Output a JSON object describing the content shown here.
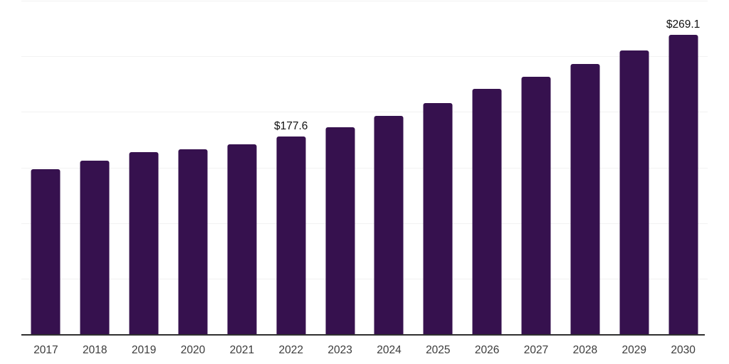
{
  "chart_data": {
    "type": "bar",
    "title": "",
    "xlabel": "",
    "ylabel": "",
    "categories": [
      "2017",
      "2018",
      "2019",
      "2020",
      "2021",
      "2022",
      "2023",
      "2024",
      "2025",
      "2026",
      "2027",
      "2028",
      "2029",
      "2030"
    ],
    "values": [
      148.5,
      156.0,
      164.0,
      166.6,
      170.8,
      177.6,
      186.4,
      196.3,
      208.2,
      220.8,
      231.8,
      243.3,
      255.3,
      269.1
    ],
    "data_labels": [
      "",
      "",
      "",
      "",
      "",
      "$177.6",
      "",
      "",
      "",
      "",
      "",
      "",
      "",
      "$269.1"
    ],
    "labeled_points": [
      {
        "category": "2022",
        "label": "$177.6"
      },
      {
        "category": "2030",
        "label": "$269.1"
      }
    ],
    "ylim": [
      0,
      300
    ],
    "gridline_step": 50,
    "grid": true,
    "y_tick_labels_visible": false,
    "legend_position": "none",
    "colors": {
      "bar": "#36114E",
      "gridline": "#F2F2F2",
      "axis_line": "#303030",
      "tick_label": "#3B3B3B",
      "data_label": "#111111",
      "background": "#FFFFFF"
    }
  }
}
